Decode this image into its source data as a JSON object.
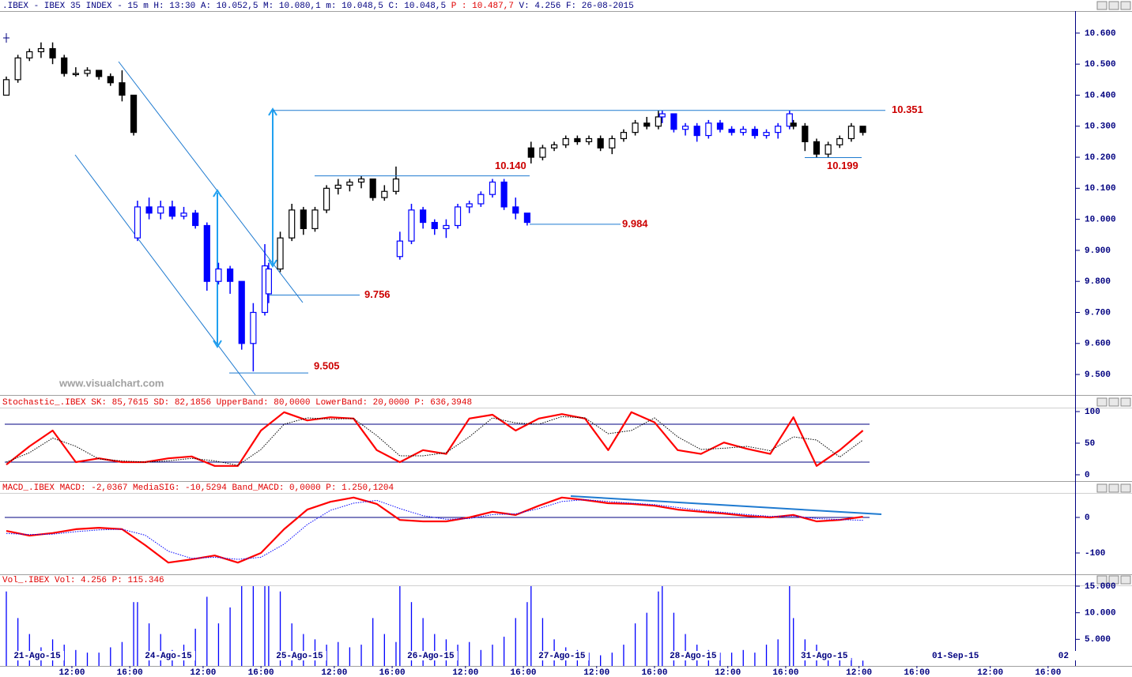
{
  "chart_data": [
    {
      "type": "candlestick",
      "title": ".IBEX - IBEX 35 INDEX -  15 m H: 13:30 A: 10.052,5 M: 10.080,1 m: 10.048,5 C: 10.048,5",
      "title_p": "P : 10.487,7",
      "title_tail": "V: 4.256 F: 26-08-2015",
      "watermark": "www.visualchart.com",
      "xlim": [
        0,
        277
      ],
      "ylim": [
        9.434,
        10.671
      ],
      "yticks": [
        {
          "value": 10.6,
          "label": "10.600"
        },
        {
          "value": 10.5,
          "label": "10.500"
        },
        {
          "value": 10.4,
          "label": "10.400"
        },
        {
          "value": 10.3,
          "label": "10.300"
        },
        {
          "value": 10.2,
          "label": "10.200"
        },
        {
          "value": 10.1,
          "label": "10.100"
        },
        {
          "value": 10.0,
          "label": "10.000"
        },
        {
          "value": 9.9,
          "label": "9.900"
        },
        {
          "value": 9.8,
          "label": "9.800"
        },
        {
          "value": 9.7,
          "label": "9.700"
        },
        {
          "value": 9.6,
          "label": "9.600"
        },
        {
          "value": 9.5,
          "label": "9.500"
        }
      ],
      "x": [
        0,
        3,
        6,
        9,
        12,
        15,
        18,
        21,
        24,
        27,
        30,
        33,
        34,
        37,
        40,
        43,
        46,
        49,
        52,
        55,
        58,
        61,
        64,
        67,
        68,
        71,
        74,
        77,
        80,
        83,
        86,
        89,
        92,
        95,
        98,
        101,
        102,
        105,
        108,
        111,
        114,
        117,
        120,
        123,
        126,
        129,
        132,
        135,
        136,
        139,
        142,
        145,
        148,
        151,
        154,
        157,
        160,
        163,
        166,
        169,
        170,
        173,
        176,
        179,
        182,
        185,
        188,
        191,
        194,
        197,
        200,
        203,
        204,
        207,
        210,
        213,
        216,
        219,
        222
      ],
      "open": [
        10.4,
        10.45,
        10.52,
        10.54,
        10.55,
        10.52,
        10.47,
        10.47,
        10.48,
        10.46,
        10.44,
        10.4,
        9.94,
        10.04,
        10.02,
        10.04,
        10.01,
        10.02,
        9.98,
        9.8,
        9.84,
        9.8,
        9.6,
        9.7,
        9.76,
        9.84,
        9.94,
        10.03,
        9.97,
        10.03,
        10.1,
        10.11,
        10.12,
        10.13,
        10.07,
        10.09,
        9.88,
        9.93,
        10.03,
        9.99,
        9.97,
        9.98,
        10.04,
        10.05,
        10.08,
        10.12,
        10.04,
        10.02,
        10.23,
        10.2,
        10.23,
        10.24,
        10.26,
        10.25,
        10.26,
        10.23,
        10.26,
        10.28,
        10.31,
        10.3,
        10.33,
        10.34,
        10.29,
        10.3,
        10.27,
        10.31,
        10.29,
        10.28,
        10.29,
        10.27,
        10.28,
        10.3,
        10.31,
        10.3,
        10.25,
        10.21,
        10.24,
        10.26,
        10.3
      ],
      "high": [
        10.46,
        10.53,
        10.55,
        10.57,
        10.57,
        10.53,
        10.49,
        10.49,
        10.48,
        10.47,
        10.48,
        10.4,
        10.06,
        10.07,
        10.06,
        10.06,
        10.04,
        10.03,
        9.99,
        9.86,
        9.85,
        9.8,
        9.73,
        9.92,
        9.86,
        9.96,
        10.05,
        10.04,
        10.04,
        10.11,
        10.13,
        10.13,
        10.14,
        10.13,
        10.11,
        10.17,
        9.96,
        10.05,
        10.04,
        10.0,
        10.0,
        10.05,
        10.06,
        10.09,
        10.13,
        10.13,
        10.07,
        10.02,
        10.25,
        10.24,
        10.25,
        10.27,
        10.27,
        10.27,
        10.27,
        10.27,
        10.29,
        10.32,
        10.33,
        10.35,
        10.35,
        10.34,
        10.31,
        10.31,
        10.32,
        10.32,
        10.3,
        10.3,
        10.3,
        10.29,
        10.31,
        10.35,
        10.32,
        10.31,
        10.26,
        10.25,
        10.27,
        10.31,
        10.3
      ],
      "low": [
        10.4,
        10.44,
        10.51,
        10.52,
        10.5,
        10.46,
        10.46,
        10.46,
        10.45,
        10.43,
        10.38,
        10.27,
        9.93,
        10.0,
        10.0,
        10.0,
        10.0,
        9.97,
        9.77,
        9.79,
        9.76,
        9.58,
        9.51,
        9.69,
        9.73,
        9.83,
        9.93,
        9.95,
        9.96,
        10.02,
        10.08,
        10.09,
        10.1,
        10.06,
        10.06,
        10.08,
        9.87,
        9.92,
        9.97,
        9.95,
        9.94,
        9.97,
        10.02,
        10.04,
        10.07,
        10.03,
        10.0,
        9.98,
        10.18,
        10.19,
        10.22,
        10.23,
        10.24,
        10.24,
        10.22,
        10.21,
        10.25,
        10.27,
        10.29,
        10.29,
        10.31,
        10.28,
        10.27,
        10.25,
        10.26,
        10.28,
        10.27,
        10.27,
        10.26,
        10.26,
        10.26,
        10.29,
        10.29,
        10.22,
        10.2,
        10.2,
        10.23,
        10.25,
        10.27
      ],
      "close": [
        10.45,
        10.52,
        10.54,
        10.55,
        10.52,
        10.47,
        10.47,
        10.48,
        10.46,
        10.44,
        10.4,
        10.28,
        10.04,
        10.02,
        10.04,
        10.01,
        10.02,
        9.98,
        9.8,
        9.84,
        9.8,
        9.6,
        9.7,
        9.85,
        9.84,
        9.94,
        10.03,
        9.97,
        10.03,
        10.1,
        10.11,
        10.12,
        10.13,
        10.07,
        10.09,
        10.13,
        9.93,
        10.03,
        9.99,
        9.97,
        9.98,
        10.04,
        10.05,
        10.08,
        10.12,
        10.04,
        10.02,
        9.99,
        10.2,
        10.23,
        10.24,
        10.26,
        10.25,
        10.26,
        10.23,
        10.26,
        10.28,
        10.31,
        10.3,
        10.33,
        10.34,
        10.29,
        10.3,
        10.27,
        10.31,
        10.29,
        10.28,
        10.29,
        10.27,
        10.28,
        10.3,
        10.34,
        10.3,
        10.25,
        10.21,
        10.24,
        10.26,
        10.3,
        10.28
      ],
      "colors": [
        "#000000",
        "#000000",
        "#000000",
        "#000000",
        "#000000",
        "#000000",
        "#000000",
        "#000000",
        "#000000",
        "#000000",
        "#000000",
        "#000000",
        "#0000ff",
        "#0000ff",
        "#0000ff",
        "#0000ff",
        "#0000ff",
        "#0000ff",
        "#0000ff",
        "#0000ff",
        "#0000ff",
        "#0000ff",
        "#0000ff",
        "#0000ff",
        "#0000ff",
        "#000000",
        "#000000",
        "#000000",
        "#000000",
        "#000000",
        "#000000",
        "#000000",
        "#000000",
        "#000000",
        "#000000",
        "#000000",
        "#0000ff",
        "#0000ff",
        "#0000ff",
        "#0000ff",
        "#0000ff",
        "#0000ff",
        "#0000ff",
        "#0000ff",
        "#0000ff",
        "#0000ff",
        "#0000ff",
        "#0000ff",
        "#000000",
        "#000000",
        "#000000",
        "#000000",
        "#000000",
        "#000000",
        "#000000",
        "#000000",
        "#000000",
        "#000000",
        "#000000",
        "#000000",
        "#0000ff",
        "#0000ff",
        "#0000ff",
        "#0000ff",
        "#0000ff",
        "#0000ff",
        "#0000ff",
        "#0000ff",
        "#0000ff",
        "#0000ff",
        "#0000ff",
        "#0000ff",
        "#000000",
        "#000000",
        "#000000",
        "#000000",
        "#000000",
        "#000000",
        "#000000"
      ],
      "levels": [
        {
          "value": 10.351,
          "label": "10.351"
        },
        {
          "value": 10.14,
          "label": "10.140"
        },
        {
          "value": 10.199,
          "label": "10.199"
        },
        {
          "value": 9.984,
          "label": "9.984"
        },
        {
          "value": 9.756,
          "label": "9.756"
        },
        {
          "value": 9.505,
          "label": "9.505"
        }
      ],
      "level_color": "#cc0000"
    },
    {
      "type": "line",
      "title": "Stochastic_.IBEX SK: 85,7615 SD: 82,1856 UpperBand: 80,0000 LowerBand: 20,0000",
      "title_p": "P: 636,3948",
      "xlim": [
        0,
        277
      ],
      "ylim": [
        -8.75,
        105
      ],
      "yticks": [
        100,
        50,
        0
      ],
      "bands": [
        80,
        20
      ],
      "x": [
        0,
        6,
        12,
        18,
        24,
        30,
        36,
        42,
        48,
        54,
        60,
        66,
        72,
        78,
        84,
        90,
        96,
        102,
        108,
        114,
        120,
        126,
        132,
        138,
        144,
        150,
        156,
        162,
        168,
        174,
        180,
        186,
        192,
        198,
        204,
        210,
        216,
        222
      ],
      "series": [
        {
          "color": "#ff0000",
          "style": "solid",
          "values": [
            16,
            45,
            70,
            20,
            26,
            20,
            20,
            26,
            29,
            14,
            14,
            70,
            99,
            86,
            91,
            89,
            39,
            20,
            39,
            33,
            89,
            95,
            70,
            89,
            96,
            89,
            39,
            99,
            83,
            39,
            33,
            51,
            41,
            33,
            91,
            14,
            39,
            70
          ]
        },
        {
          "color": "#000000",
          "style": "dotted",
          "values": [
            20,
            35,
            58,
            45,
            25,
            22,
            20,
            22,
            26,
            22,
            15,
            40,
            80,
            90,
            88,
            89,
            62,
            30,
            30,
            35,
            60,
            90,
            82,
            80,
            92,
            90,
            65,
            70,
            90,
            60,
            40,
            42,
            45,
            38,
            60,
            55,
            28,
            55
          ]
        }
      ]
    },
    {
      "type": "line",
      "title": "MACD_.IBEX MACD: -2,0367 MediaSIG: -10,5294 Band_MACD: 0,0000",
      "title_p": "P: 1.250,1204",
      "xlim": [
        0,
        277
      ],
      "ylim": [
        -160,
        66.7
      ],
      "yticks": [
        0,
        -100
      ],
      "bands": [
        0
      ],
      "x": [
        0,
        6,
        12,
        18,
        24,
        30,
        36,
        42,
        48,
        54,
        60,
        66,
        72,
        78,
        84,
        90,
        96,
        102,
        108,
        114,
        120,
        126,
        132,
        138,
        144,
        150,
        156,
        162,
        168,
        174,
        180,
        186,
        192,
        198,
        204,
        210,
        216,
        222
      ],
      "series": [
        {
          "color": "#ff0000",
          "style": "solid",
          "values": [
            -38,
            -51,
            -44,
            -33,
            -29,
            -33,
            -78,
            -127,
            -118,
            -107,
            -127,
            -100,
            -33,
            22,
            44,
            56,
            38,
            -7,
            -11,
            -11,
            0,
            16,
            7,
            33,
            56,
            49,
            40,
            38,
            33,
            22,
            16,
            11,
            4,
            0,
            7,
            -11,
            -7,
            2
          ]
        },
        {
          "color": "#0000ff",
          "style": "dotted",
          "values": [
            -45,
            -48,
            -47,
            -40,
            -35,
            -33,
            -50,
            -95,
            -115,
            -112,
            -118,
            -112,
            -75,
            -20,
            20,
            40,
            48,
            25,
            5,
            -5,
            -3,
            8,
            10,
            25,
            45,
            50,
            45,
            40,
            36,
            28,
            20,
            14,
            8,
            3,
            4,
            -3,
            -6,
            -8
          ]
        }
      ]
    },
    {
      "type": "bar",
      "title": "Vol_.IBEX Vol: 4.256",
      "title_p": "P: 115.346",
      "xlim": [
        0,
        277
      ],
      "ylim": [
        0,
        15147
      ],
      "yticks": [
        {
          "value": 15000,
          "label": "15.000"
        },
        {
          "value": 10000,
          "label": "10.000"
        },
        {
          "value": 5000,
          "label": "5.000"
        }
      ],
      "color": "#0000ff",
      "x": [
        0,
        3,
        6,
        9,
        12,
        15,
        18,
        21,
        24,
        27,
        30,
        33,
        34,
        37,
        40,
        43,
        46,
        49,
        52,
        55,
        58,
        61,
        64,
        67,
        68,
        71,
        74,
        77,
        80,
        83,
        86,
        89,
        92,
        95,
        98,
        101,
        102,
        105,
        108,
        111,
        114,
        117,
        120,
        123,
        126,
        129,
        132,
        135,
        136,
        139,
        142,
        145,
        148,
        151,
        154,
        157,
        160,
        163,
        166,
        169,
        170,
        173,
        176,
        179,
        182,
        185,
        188,
        191,
        194,
        197,
        200,
        203,
        204,
        207,
        210,
        213,
        216,
        219,
        222
      ],
      "values": [
        14000,
        9000,
        6000,
        3500,
        5000,
        4000,
        3000,
        2500,
        2500,
        3500,
        4500,
        12000,
        12000,
        8000,
        6000,
        3000,
        4000,
        7000,
        13000,
        8000,
        11000,
        15000,
        15000,
        15000,
        15000,
        14000,
        8000,
        6000,
        5000,
        4000,
        4500,
        3500,
        4000,
        9000,
        6000,
        4500,
        15000,
        12000,
        9000,
        6000,
        5000,
        4000,
        4500,
        3000,
        4000,
        5500,
        9000,
        12000,
        15000,
        9000,
        5000,
        3500,
        3000,
        2500,
        2000,
        2500,
        4000,
        8000,
        10000,
        14000,
        15000,
        10000,
        6000,
        4000,
        3000,
        2500,
        2500,
        3000,
        2500,
        4000,
        5000,
        15000,
        9000,
        5000,
        4000,
        2500,
        2000,
        1500,
        1000
      ],
      "xticks": [
        {
          "value": 17,
          "label": "12:00"
        },
        {
          "value": 32,
          "label": "16:00"
        },
        {
          "value": 51,
          "label": "12:00"
        },
        {
          "value": 66,
          "label": "16:00"
        },
        {
          "value": 85,
          "label": "12:00"
        },
        {
          "value": 100,
          "label": "16:00"
        },
        {
          "value": 119,
          "label": "12:00"
        },
        {
          "value": 134,
          "label": "16:00"
        },
        {
          "value": 153,
          "label": "12:00"
        },
        {
          "value": 168,
          "label": "16:00"
        },
        {
          "value": 187,
          "label": "12:00"
        },
        {
          "value": 202,
          "label": "16:00"
        },
        {
          "value": 221,
          "label": "12:00"
        },
        {
          "value": 236,
          "label": "16:00"
        },
        {
          "value": 255,
          "label": "12:00"
        },
        {
          "value": 270,
          "label": "16:00"
        }
      ],
      "xdateticks": [
        {
          "value": 8,
          "label": "21-Ago-15"
        },
        {
          "value": 42,
          "label": "24-Ago-15"
        },
        {
          "value": 76,
          "label": "25-Ago-15"
        },
        {
          "value": 110,
          "label": "26-Ago-15"
        },
        {
          "value": 144,
          "label": "27-Ago-15"
        },
        {
          "value": 178,
          "label": "28-Ago-15"
        },
        {
          "value": 212,
          "label": "31-Ago-15"
        },
        {
          "value": 246,
          "label": "01-Sep-15"
        },
        {
          "value": 274,
          "label": "02"
        }
      ]
    }
  ]
}
